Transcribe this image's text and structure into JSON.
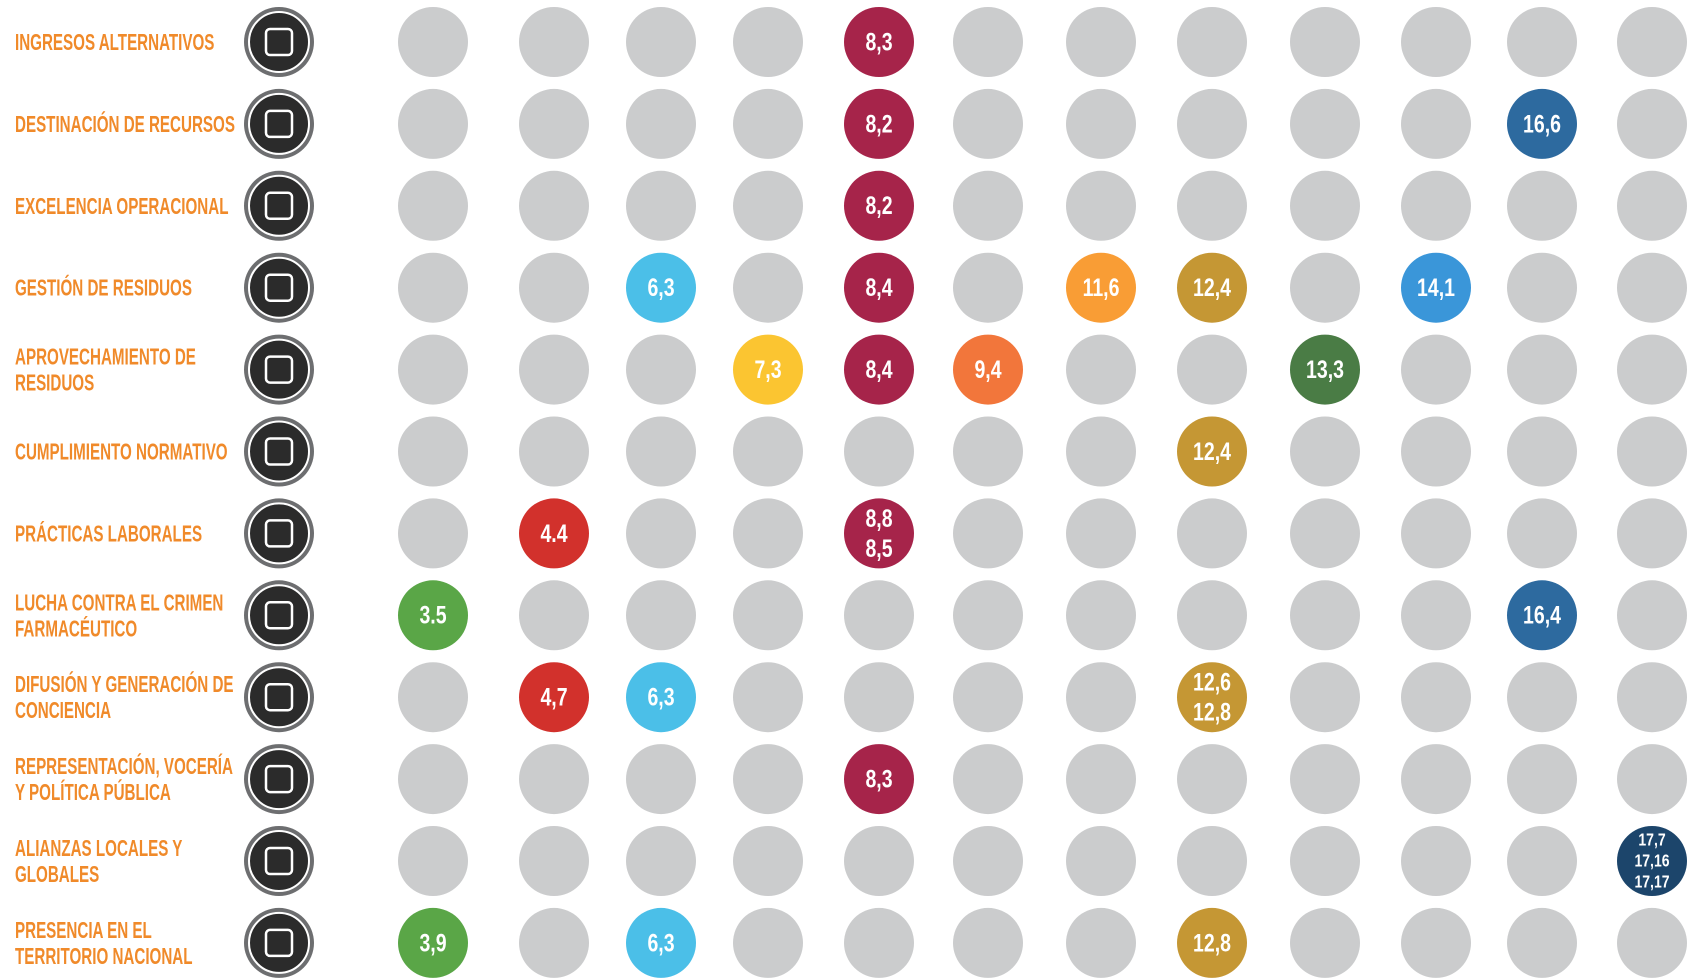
{
  "gray": "#cbcccd",
  "column_colors": [
    "#5aa647",
    "#d2312c",
    "#4bbfe8",
    "#fbc531",
    "#a6244a",
    "#f2763b",
    "#f99d35",
    "#c59734",
    "#4a7c45",
    "#3a96d9",
    "#2d6a9f",
    "#1c456b"
  ],
  "rows": [
    {
      "label": [
        "INGRESOS ALTERNATIVOS"
      ],
      "cells": [
        null,
        null,
        null,
        null,
        [
          "8,3"
        ],
        null,
        null,
        null,
        null,
        null,
        null,
        null
      ]
    },
    {
      "label": [
        "DESTINACIÓN DE RECURSOS"
      ],
      "cells": [
        null,
        null,
        null,
        null,
        [
          "8,2"
        ],
        null,
        null,
        null,
        null,
        null,
        [
          "16,6"
        ],
        null
      ]
    },
    {
      "label": [
        "EXCELENCIA OPERACIONAL"
      ],
      "cells": [
        null,
        null,
        null,
        null,
        [
          "8,2"
        ],
        null,
        null,
        null,
        null,
        null,
        null,
        null
      ]
    },
    {
      "label": [
        "GESTIÓN DE RESIDUOS"
      ],
      "cells": [
        null,
        null,
        [
          "6,3"
        ],
        null,
        [
          "8,4"
        ],
        null,
        [
          "11,6"
        ],
        [
          "12,4"
        ],
        null,
        [
          "14,1"
        ],
        null,
        null
      ]
    },
    {
      "label": [
        "APROVECHAMIENTO DE",
        "RESIDUOS"
      ],
      "cells": [
        null,
        null,
        null,
        [
          "7,3"
        ],
        [
          "8,4"
        ],
        [
          "9,4"
        ],
        null,
        null,
        [
          "13,3"
        ],
        null,
        null,
        null
      ]
    },
    {
      "label": [
        "CUMPLIMIENTO NORMATIVO"
      ],
      "cells": [
        null,
        null,
        null,
        null,
        null,
        null,
        null,
        [
          "12,4"
        ],
        null,
        null,
        null,
        null
      ]
    },
    {
      "label": [
        "PRÁCTICAS LABORALES"
      ],
      "cells": [
        null,
        [
          "4.4"
        ],
        null,
        null,
        [
          "8,8",
          "8,5"
        ],
        null,
        null,
        null,
        null,
        null,
        null,
        null
      ]
    },
    {
      "label": [
        "LUCHA CONTRA EL CRIMEN",
        "FARMACÉUTICO"
      ],
      "cells": [
        [
          "3.5"
        ],
        null,
        null,
        null,
        null,
        null,
        null,
        null,
        null,
        null,
        [
          "16,4"
        ],
        null
      ]
    },
    {
      "label": [
        "DIFUSIÓN Y GENERACIÓN DE",
        "CONCIENCIA"
      ],
      "cells": [
        null,
        [
          "4,7"
        ],
        [
          "6,3"
        ],
        null,
        null,
        null,
        null,
        [
          "12,6",
          "12,8"
        ],
        null,
        null,
        null,
        null
      ]
    },
    {
      "label": [
        "REPRESENTACIÓN, VOCERÍA",
        "Y POLÍTICA PÚBLICA"
      ],
      "cells": [
        null,
        null,
        null,
        null,
        [
          "8,3"
        ],
        null,
        null,
        null,
        null,
        null,
        null,
        null
      ]
    },
    {
      "label": [
        "ALIANZAS LOCALES Y",
        "GLOBALES"
      ],
      "cells": [
        null,
        null,
        null,
        null,
        null,
        null,
        null,
        null,
        null,
        null,
        null,
        [
          "17,7",
          "17,16",
          "17,17"
        ]
      ]
    },
    {
      "label": [
        "PRESENCIA EN EL",
        "TERRITORIO NACIONAL"
      ],
      "cells": [
        [
          "3,9"
        ],
        null,
        [
          "6,3"
        ],
        null,
        null,
        null,
        null,
        [
          "12,8"
        ],
        null,
        null,
        null,
        null
      ]
    }
  ]
}
